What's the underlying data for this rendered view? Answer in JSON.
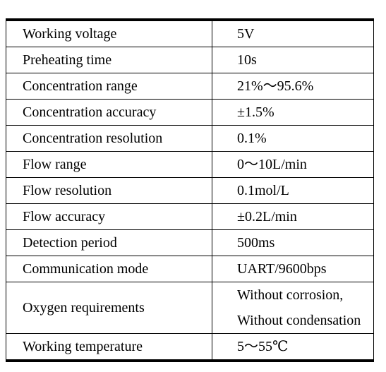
{
  "rows": [
    {
      "parameter": "Working voltage",
      "value": [
        "5V"
      ]
    },
    {
      "parameter": "Preheating time",
      "value": [
        "10s"
      ]
    },
    {
      "parameter": "Concentration range",
      "value": [
        "21%～95.6%"
      ]
    },
    {
      "parameter": "Concentration accuracy",
      "value": [
        "±1.5%"
      ]
    },
    {
      "parameter": "Concentration resolution",
      "value": [
        "0.1%"
      ]
    },
    {
      "parameter": "Flow range",
      "value": [
        "0～10L/min"
      ]
    },
    {
      "parameter": "Flow resolution",
      "value": [
        "0.1mol/L"
      ]
    },
    {
      "parameter": "Flow accuracy",
      "value": [
        "±0.2L/min"
      ]
    },
    {
      "parameter": "Detection period",
      "value": [
        "500ms"
      ]
    },
    {
      "parameter": "Communication mode",
      "value": [
        "UART/9600bps"
      ]
    },
    {
      "parameter": "Oxygen requirements",
      "value": [
        "Without corrosion,",
        "Without condensation"
      ]
    },
    {
      "parameter": "Working temperature",
      "value": [
        "5～55℃"
      ]
    }
  ]
}
